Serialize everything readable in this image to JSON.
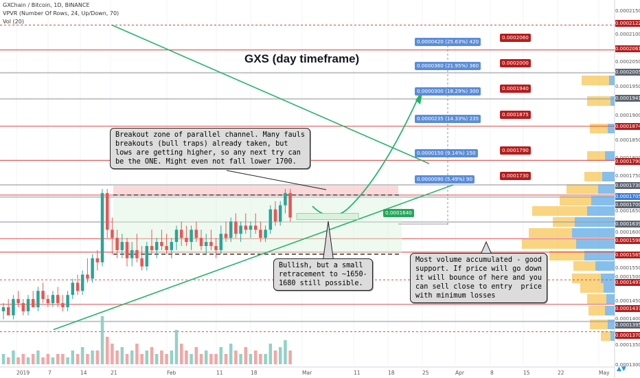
{
  "header": {
    "symbol_line": "GXChain / Bitcoin, 1D, BINANCE",
    "vpvr_line": "VPVR (Number Of Rows, 24, Up/Down, 70)",
    "vol_line": "Vol (20)"
  },
  "title": "GXS (day timeframe)",
  "callouts": {
    "breakout": "Breakout zone of parallel channel. Many fauls\nbreakouts (bull traps) already taken, but\nlows are getting higher, so any next try can\nbe the ONE. Might even not fall lower 1700.",
    "bullish": "Bullish, but a small\nretracement to ~1650-\n1680 still possible.",
    "volume": "Most volume accumulated - good\nsupport. If price will go down\nit will bounce of here and you\ncan sell close to entry  price\nwith minimum losses"
  },
  "target_labels": [
    {
      "gain": "0.0000420 (25.63%) 420",
      "target": "0.0002060"
    },
    {
      "gain": "0.0000360 (21.95%) 360",
      "target": "0.0002000"
    },
    {
      "gain": "0.0000300 (18.29%) 300",
      "target": "0.0001940"
    },
    {
      "gain": "0.0000235 (14.33%) 235",
      "target": "0.0001875"
    },
    {
      "gain": "0.0000150 (9.14%) 150",
      "target": "0.0001790"
    },
    {
      "gain": "0.0000090 (5.49%) 90",
      "target": "0.0001730"
    }
  ],
  "entry_label": "0.0001640",
  "price_axis": {
    "ticks": [
      "0.0002150",
      "0.0002100",
      "0.0002050",
      "0.0001950",
      "0.0001900",
      "0.0001850",
      "0.0001800",
      "0.0001750",
      "0.0001700",
      "0.0001650",
      "0.0001600",
      "0.0001550",
      "0.0001500",
      "0.0001450",
      "0.0001400",
      "0.0001350",
      "0.0001300"
    ],
    "red_tags": [
      "0.0002122",
      "0.0002061",
      "0.0001874",
      "0.0001790",
      "0.0001598",
      "0.0001565",
      "0.0001497",
      "0.0001437",
      "0.0001370"
    ],
    "gray_tags": [
      "0.0002005",
      "0.0001941",
      "0.0001730",
      "0.0001700",
      "0.0001639",
      "0.0001395"
    ],
    "blue_tag": "0.0001705"
  },
  "time_axis": [
    "2019",
    "7",
    "14",
    "21",
    "Feb",
    "11",
    "18",
    "Mar",
    "11",
    "18",
    "25",
    "Apr",
    "8",
    "15",
    "22",
    "May"
  ],
  "colors": {
    "up": "#26a69a",
    "down": "#ef5350",
    "line": "#26b36b",
    "level_red": "#e04040",
    "level_gray": "#9aa0a6",
    "label_blue": "#5b8dd8",
    "label_red": "#b71c1c"
  },
  "chart_data": {
    "type": "candlestick",
    "ylim": [
      0.000129,
      0.000217
    ],
    "levels": [
      0.0002122,
      0.0002061,
      0.0002005,
      0.0001941,
      0.0001874,
      0.000179,
      0.000173,
      0.0001705,
      0.00017,
      0.0001639,
      0.0001598,
      0.0001565,
      0.0001497,
      0.0001437,
      0.0001395,
      0.000137
    ],
    "candles": [
      [
        0.000142,
        0.000144,
        0.00014,
        0.000143
      ],
      [
        0.000143,
        0.000145,
        0.000141,
        0.000141
      ],
      [
        0.000141,
        0.000146,
        0.00014,
        0.000145
      ],
      [
        0.000145,
        0.000147,
        0.000143,
        0.000144
      ],
      [
        0.000144,
        0.000145,
        0.000141,
        0.000142
      ],
      [
        0.000142,
        0.000146,
        0.000141,
        0.000145
      ],
      [
        0.000145,
        0.000147,
        0.000143,
        0.000143
      ],
      [
        0.000143,
        0.000148,
        0.000142,
        0.000147
      ],
      [
        0.000147,
        0.000149,
        0.000144,
        0.000145
      ],
      [
        0.000145,
        0.000146,
        0.000143,
        0.000144
      ],
      [
        0.000144,
        0.000147,
        0.000143,
        0.000146
      ],
      [
        0.000146,
        0.000148,
        0.000143,
        0.000144
      ],
      [
        0.000144,
        0.000146,
        0.000142,
        0.000143
      ],
      [
        0.000143,
        0.000147,
        0.000142,
        0.000146
      ],
      [
        0.000146,
        0.00015,
        0.000145,
        0.000149
      ],
      [
        0.000149,
        0.000151,
        0.000146,
        0.000147
      ],
      [
        0.000147,
        0.000152,
        0.000146,
        0.000151
      ],
      [
        0.000151,
        0.000155,
        0.000149,
        0.00015
      ],
      [
        0.00015,
        0.000156,
        0.000149,
        0.000155
      ],
      [
        0.000155,
        0.000157,
        0.000152,
        0.000154
      ],
      [
        0.000154,
        0.000172,
        0.000153,
        0.000171
      ],
      [
        0.000171,
        0.000172,
        0.00016,
        0.000162
      ],
      [
        0.000162,
        0.000165,
        0.000156,
        0.00016
      ],
      [
        0.00016,
        0.000162,
        0.000155,
        0.000157
      ],
      [
        0.000157,
        0.000161,
        0.000155,
        0.000159
      ],
      [
        0.000159,
        0.00016,
        0.000153,
        0.000155
      ],
      [
        0.000155,
        0.000159,
        0.000153,
        0.000157
      ],
      [
        0.000157,
        0.000161,
        0.000154,
        0.000155
      ],
      [
        0.000155,
        0.000158,
        0.000152,
        0.000153
      ],
      [
        0.000153,
        0.000159,
        0.000152,
        0.000158
      ],
      [
        0.000158,
        0.000162,
        0.000156,
        0.000157
      ],
      [
        0.000157,
        0.00016,
        0.000155,
        0.000159
      ],
      [
        0.000159,
        0.000162,
        0.000157,
        0.000158
      ],
      [
        0.000158,
        0.000161,
        0.000156,
        0.000157
      ],
      [
        0.000157,
        0.00016,
        0.000155,
        0.000159
      ],
      [
        0.000159,
        0.000163,
        0.000157,
        0.000162
      ],
      [
        0.000162,
        0.000164,
        0.000158,
        0.00016
      ],
      [
        0.00016,
        0.000163,
        0.000158,
        0.000159
      ],
      [
        0.000159,
        0.000163,
        0.000157,
        0.000162
      ],
      [
        0.000162,
        0.000164,
        0.000159,
        0.00016
      ],
      [
        0.00016,
        0.000162,
        0.000157,
        0.000158
      ],
      [
        0.000158,
        0.000161,
        0.000156,
        0.000159
      ],
      [
        0.000159,
        0.000162,
        0.000157,
        0.000158
      ],
      [
        0.000158,
        0.00016,
        0.000155,
        0.000157
      ],
      [
        0.000157,
        0.000163,
        0.000156,
        0.000161
      ],
      [
        0.000161,
        0.000164,
        0.000159,
        0.00016
      ],
      [
        0.00016,
        0.000165,
        0.000159,
        0.000164
      ],
      [
        0.000164,
        0.000166,
        0.00016,
        0.000161
      ],
      [
        0.000161,
        0.000164,
        0.000159,
        0.000163
      ],
      [
        0.000163,
        0.000166,
        0.000161,
        0.000162
      ],
      [
        0.000162,
        0.000164,
        0.00016,
        0.000163
      ],
      [
        0.000163,
        0.000166,
        0.000161,
        0.000162
      ],
      [
        0.000162,
        0.000164,
        0.000159,
        0.00016
      ],
      [
        0.00016,
        0.000163,
        0.000159,
        0.000162
      ],
      [
        0.000162,
        0.000168,
        0.000161,
        0.000167
      ],
      [
        0.000167,
        0.000169,
        0.000163,
        0.000164
      ],
      [
        0.000164,
        0.000169,
        0.000163,
        0.000168
      ],
      [
        0.000168,
        0.000172,
        0.000166,
        0.000171
      ],
      [
        0.000171,
        0.000172,
        0.000164,
        0.000165
      ]
    ],
    "volume": [
      3,
      2,
      4,
      2,
      3,
      2,
      3,
      4,
      2,
      3,
      2,
      3,
      3,
      2,
      4,
      3,
      5,
      3,
      4,
      4,
      14,
      8,
      6,
      4,
      5,
      3,
      4,
      6,
      3,
      4,
      5,
      3,
      4,
      3,
      4,
      10,
      6,
      4,
      3,
      5,
      3,
      4,
      3,
      3,
      5,
      3,
      6,
      4,
      3,
      5,
      3,
      4,
      3,
      3,
      6,
      4,
      5,
      7,
      4
    ],
    "projection": [
      0.000165,
      0.000166,
      0.00017,
      0.00018,
      0.000195,
      0.000205
    ]
  }
}
